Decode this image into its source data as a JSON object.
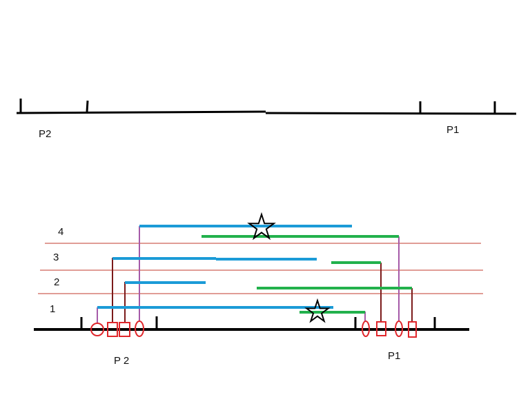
{
  "top_diagram": {
    "left_label": "P2",
    "right_label": "P1"
  },
  "bottom_diagram": {
    "left_label": "P 2",
    "right_label": "P1",
    "row_labels": [
      "1",
      "2",
      "3",
      "4"
    ]
  },
  "colors": {
    "blue": "#1b9bd7",
    "green": "#22b14c",
    "red": "#e0262b",
    "separator": "#c0392b",
    "dark_connector": "#7b1a1a",
    "purple_connector": "#a55aa8",
    "black": "#000000"
  }
}
